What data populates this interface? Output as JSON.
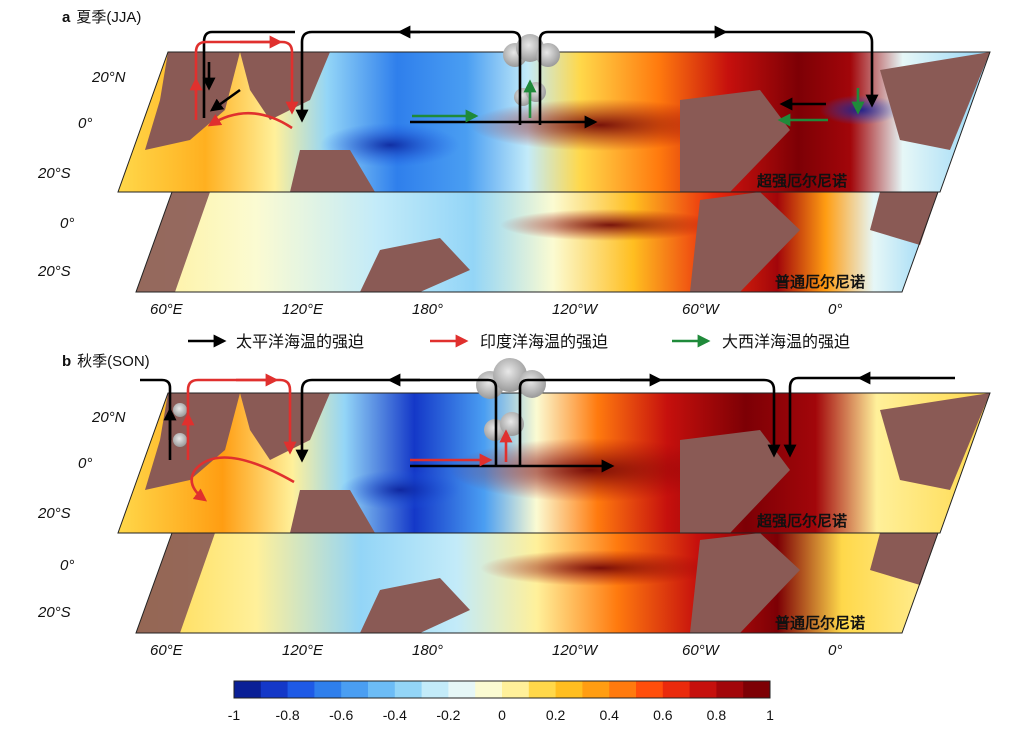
{
  "panels": [
    {
      "letter": "a",
      "title": "夏季(JJA)"
    },
    {
      "letter": "b",
      "title": "秋季(SON)"
    }
  ],
  "map_labels": {
    "strong": "超强厄尔尼诺",
    "normal": "普通厄尔尼诺"
  },
  "lat_labels_upper": [
    "20°N",
    "0°",
    "20°S"
  ],
  "lat_labels_lower": [
    "0°",
    "20°S"
  ],
  "lon_labels": [
    "60°E",
    "120°E",
    "180°",
    "120°W",
    "60°W",
    "0°"
  ],
  "legend": [
    {
      "label": "太平洋海温的强迫",
      "color": "#000000"
    },
    {
      "label": "印度洋海温的强迫",
      "color": "#e0302e"
    },
    {
      "label": "大西洋海温的强迫",
      "color": "#1f8a3a"
    }
  ],
  "colorbar": {
    "ticks": [
      "-1",
      "-0.8",
      "-0.6",
      "-0.4",
      "-0.2",
      "0",
      "0.2",
      "0.4",
      "0.6",
      "0.8",
      "1"
    ],
    "colors": [
      "#0a1f96",
      "#1438c8",
      "#1e5ae6",
      "#2f7fec",
      "#4a9ef2",
      "#6cbcf6",
      "#93d5f7",
      "#c3ebf9",
      "#e6f7f7",
      "#fbfbd2",
      "#fff09a",
      "#ffd84a",
      "#ffbe20",
      "#ff9d12",
      "#ff7a0e",
      "#ff4e0b",
      "#ea2a0c",
      "#c6100d",
      "#a2060a",
      "#7d0005"
    ]
  }
}
